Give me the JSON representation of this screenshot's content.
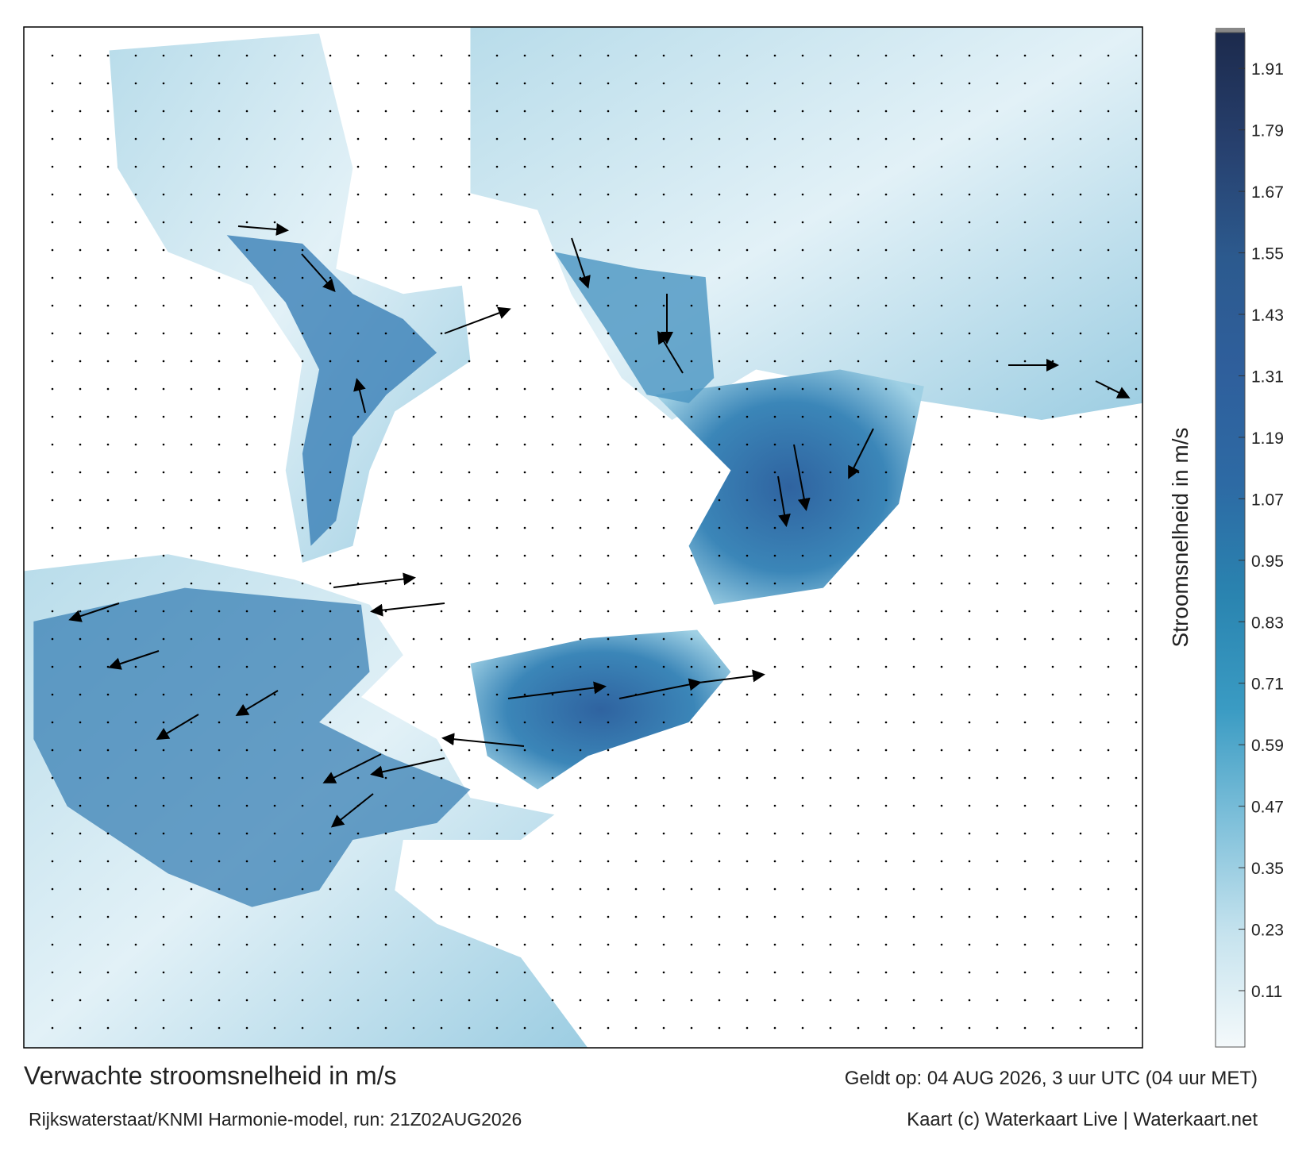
{
  "title": "Verwachte stroomsnelheid in m/s",
  "subtitle": "Rijkswaterstaat/KNMI Harmonie-model, run: 21Z02AUG2026",
  "valid_time": "Geldt op: 04 AUG 2026, 3 uur UTC (04 uur MET)",
  "credit": "Kaart (c) Waterkaart Live | Waterkaart.net",
  "colorbar": {
    "label": "Stroomsnelheid in m/s",
    "lim": [
      0,
      1.98
    ],
    "ticks": [
      0.11,
      0.23,
      0.35,
      0.47,
      0.59,
      0.71,
      0.83,
      0.95,
      1.07,
      1.19,
      1.31,
      1.43,
      1.55,
      1.67,
      1.79,
      1.91
    ],
    "colors": [
      "#f4f9fb",
      "#c6e3ee",
      "#7fc0da",
      "#3a9bc3",
      "#2a84b0",
      "#2d6aa4",
      "#2f5f9c",
      "#2c5a8e",
      "#27406e",
      "#1c2a4c"
    ]
  }
}
